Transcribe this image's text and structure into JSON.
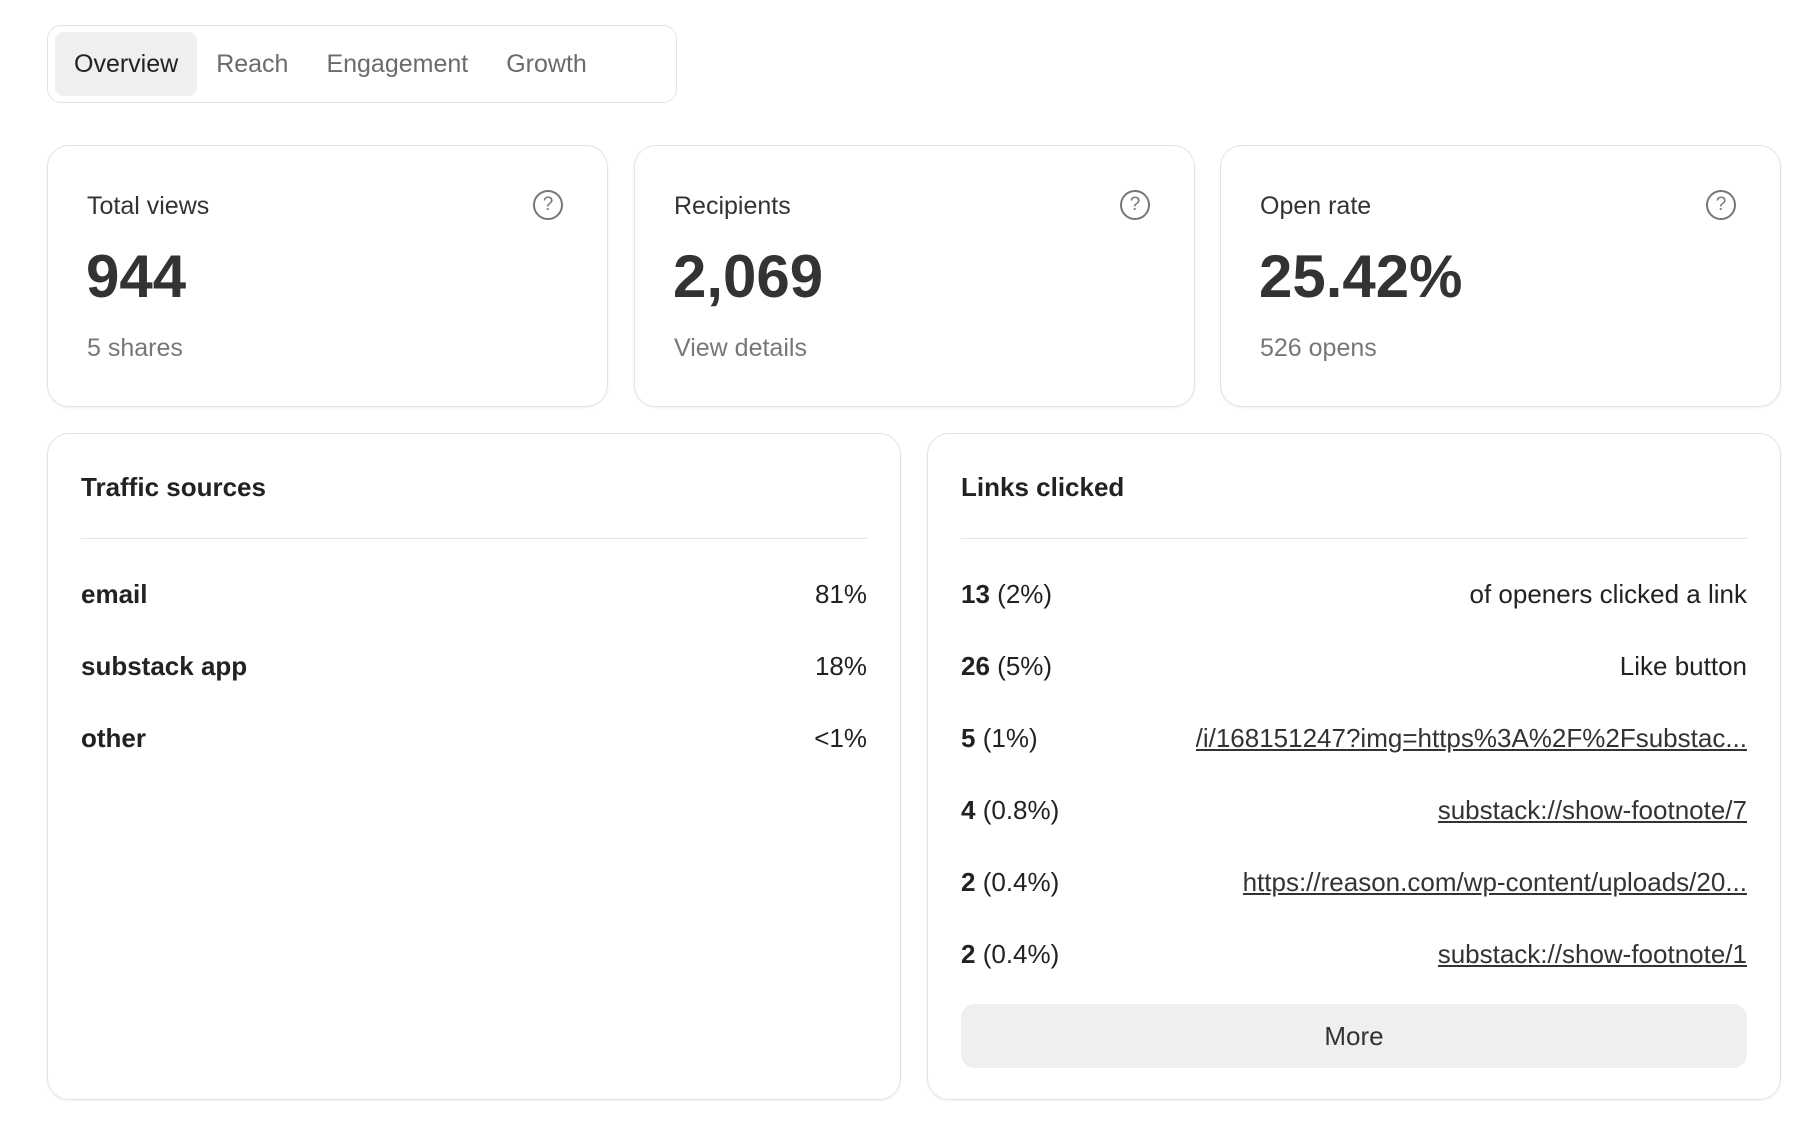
{
  "tabs": [
    "Overview",
    "Reach",
    "Engagement",
    "Growth"
  ],
  "cards": [
    {
      "label": "Total views",
      "value": "944",
      "sub": "5 shares"
    },
    {
      "label": "Recipients",
      "value": "2,069",
      "sub": "View details"
    },
    {
      "label": "Open rate",
      "value": "25.42%",
      "sub": "526 opens"
    }
  ],
  "help_glyph": "?",
  "traffic": {
    "title": "Traffic sources",
    "rows": [
      {
        "name": "email",
        "value": "81%"
      },
      {
        "name": "substack app",
        "value": "18%"
      },
      {
        "name": "other",
        "value": "<1%"
      }
    ]
  },
  "links": {
    "title": "Links clicked",
    "more": "More",
    "rows": [
      {
        "count": "13",
        "pct": "(2%)",
        "label": "of openers clicked a link"
      },
      {
        "count": "26",
        "pct": "(5%)",
        "label": "Like button"
      },
      {
        "count": "5",
        "pct": "(1%)",
        "label": "/i/168151247?img=https%3A%2F%2Fsubstac..."
      },
      {
        "count": "4",
        "pct": "(0.8%)",
        "label": "substack://show-footnote/7"
      },
      {
        "count": "2",
        "pct": "(0.4%)",
        "label": "https://reason.com/wp-content/uploads/20..."
      },
      {
        "count": "2",
        "pct": "(0.4%)",
        "label": "substack://show-footnote/1"
      }
    ]
  }
}
